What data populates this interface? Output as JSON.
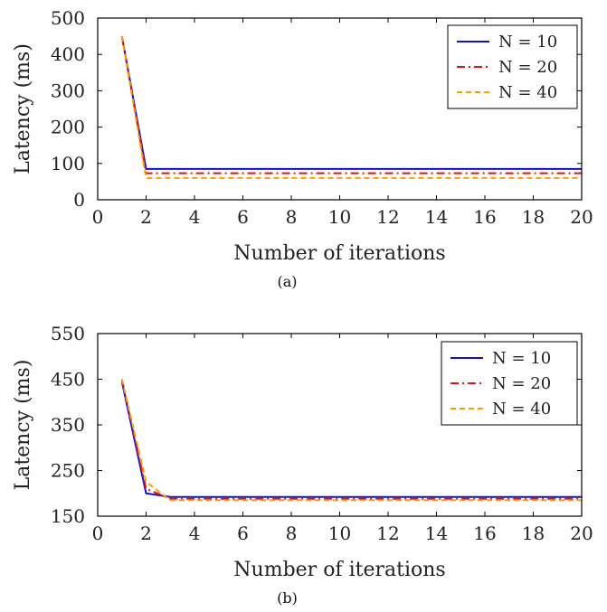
{
  "chart_data": [
    {
      "type": "line",
      "caption": "(a)",
      "xlabel": "Number of iterations",
      "ylabel": "Latency (ms)",
      "xlim": [
        0,
        20
      ],
      "ylim": [
        0,
        500
      ],
      "xticks": [
        0,
        2,
        4,
        6,
        8,
        10,
        12,
        14,
        16,
        18,
        20
      ],
      "yticks": [
        0,
        100,
        200,
        300,
        400,
        500
      ],
      "legend_position": "top-right",
      "x": [
        1,
        2,
        3,
        4,
        5,
        6,
        7,
        8,
        9,
        10,
        11,
        12,
        13,
        14,
        15,
        16,
        17,
        18,
        19,
        20
      ],
      "series": [
        {
          "name": "N = 10",
          "color": "#1010c8",
          "dash": "solid",
          "values": [
            450,
            85,
            85,
            85,
            85,
            85,
            85,
            85,
            85,
            85,
            85,
            85,
            85,
            85,
            85,
            85,
            85,
            85,
            85,
            85
          ]
        },
        {
          "name": "N = 20",
          "color": "#e81010",
          "dash": "dashdot",
          "values": [
            450,
            73,
            73,
            73,
            73,
            73,
            73,
            73,
            73,
            73,
            73,
            73,
            73,
            73,
            73,
            73,
            73,
            73,
            73,
            73
          ]
        },
        {
          "name": "N = 40",
          "color": "#f5a000",
          "dash": "dashed",
          "values": [
            450,
            60,
            60,
            60,
            60,
            60,
            60,
            60,
            60,
            60,
            60,
            60,
            60,
            60,
            60,
            60,
            60,
            60,
            60,
            60
          ]
        }
      ]
    },
    {
      "type": "line",
      "caption": "(b)",
      "xlabel": "Number of iterations",
      "ylabel": "Latency (ms)",
      "xlim": [
        0,
        20
      ],
      "ylim": [
        150,
        550
      ],
      "xticks": [
        0,
        2,
        4,
        6,
        8,
        10,
        12,
        14,
        16,
        18,
        20
      ],
      "yticks": [
        150,
        250,
        350,
        450,
        550
      ],
      "legend_position": "top-right",
      "x": [
        1,
        2,
        3,
        4,
        5,
        6,
        7,
        8,
        9,
        10,
        11,
        12,
        13,
        14,
        15,
        16,
        17,
        18,
        19,
        20
      ],
      "series": [
        {
          "name": "N = 10",
          "color": "#1010c8",
          "dash": "solid",
          "values": [
            445,
            200,
            192,
            192,
            192,
            192,
            192,
            192,
            192,
            192,
            192,
            192,
            192,
            192,
            192,
            192,
            192,
            192,
            192,
            192
          ]
        },
        {
          "name": "N = 20",
          "color": "#e81010",
          "dash": "dashdot",
          "values": [
            450,
            210,
            188,
            188,
            188,
            188,
            188,
            188,
            188,
            188,
            188,
            188,
            188,
            188,
            188,
            188,
            188,
            188,
            188,
            188
          ]
        },
        {
          "name": "N = 40",
          "color": "#f5a000",
          "dash": "dashed",
          "values": [
            450,
            225,
            185,
            185,
            185,
            185,
            185,
            185,
            185,
            185,
            185,
            185,
            185,
            185,
            185,
            185,
            185,
            185,
            185,
            185
          ]
        }
      ]
    }
  ]
}
